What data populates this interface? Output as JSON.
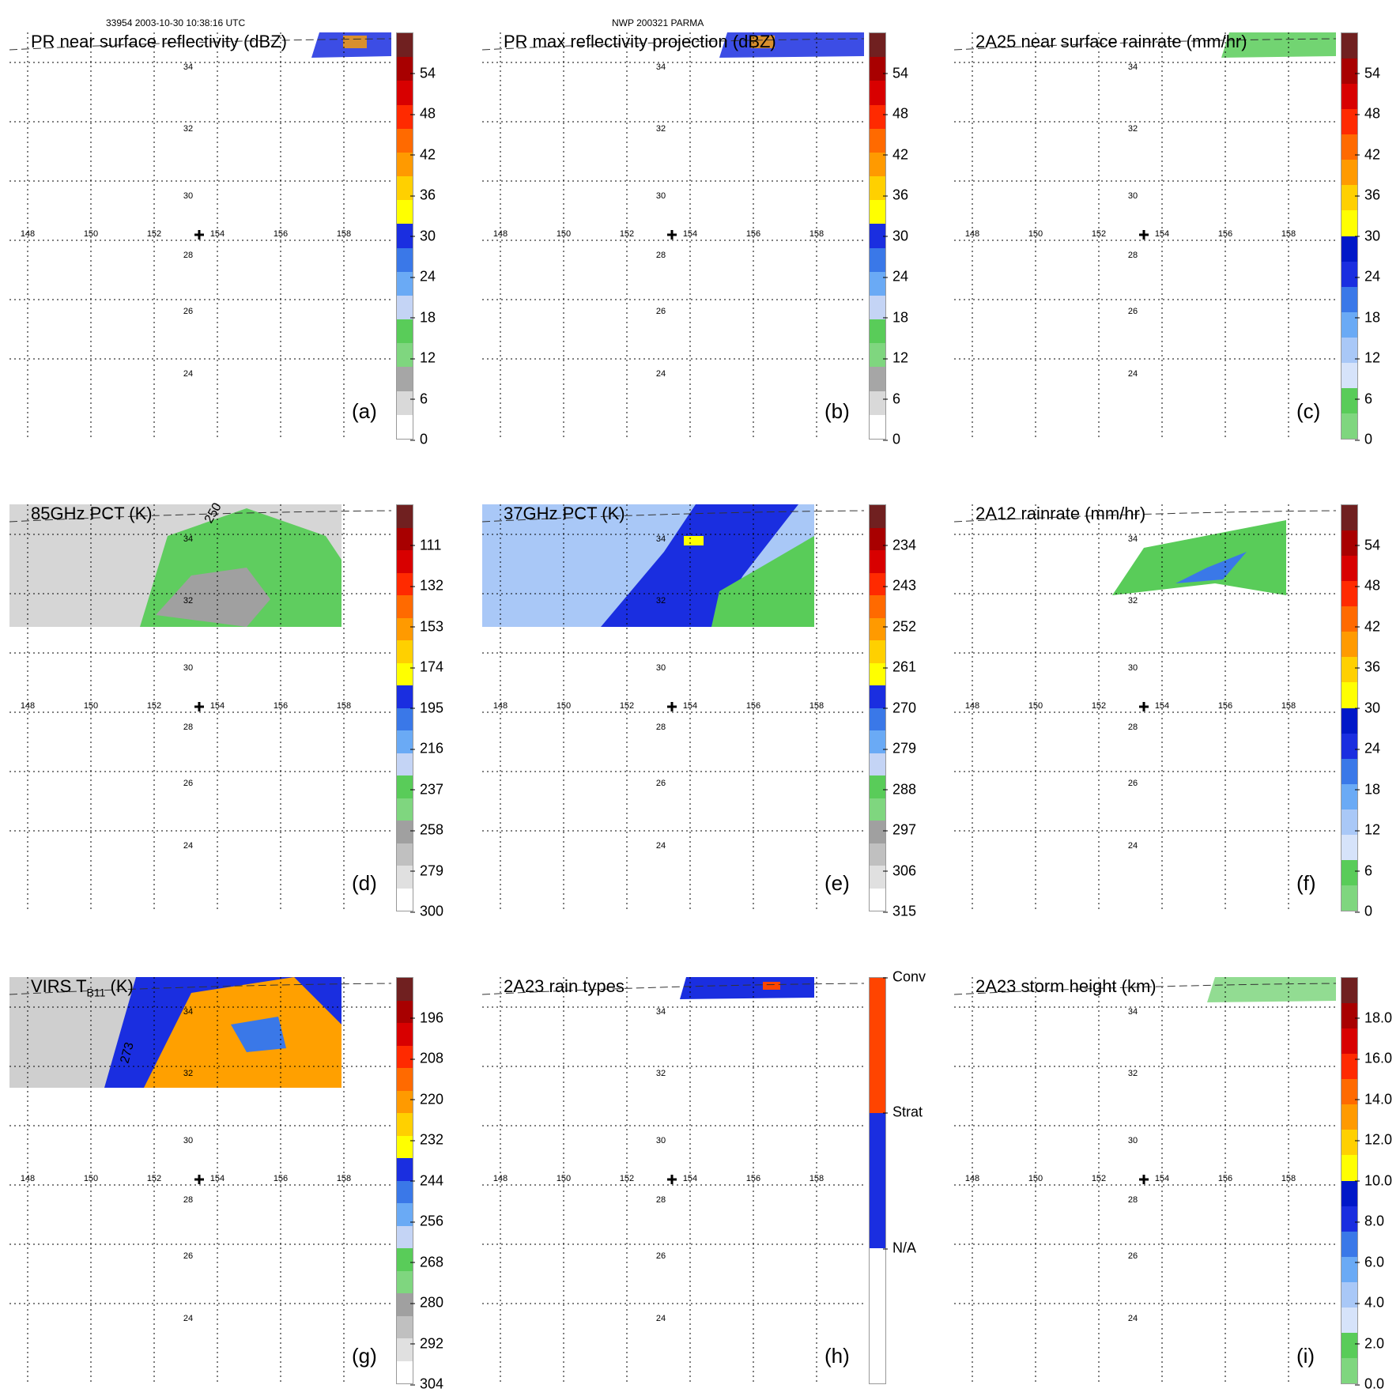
{
  "header": {
    "left": "33954 2003-10-30 10:38:16 UTC",
    "right": "NWP 200321 PARMA"
  },
  "grid": {
    "lon_labels": [
      "148",
      "150",
      "152",
      "154",
      "156",
      "158"
    ],
    "lat_labels": [
      "34",
      "32",
      "30",
      "28",
      "26",
      "24"
    ]
  },
  "panels": [
    {
      "id": "a",
      "title": "PR near surface reflectivity (dBZ)",
      "label": "(a)",
      "colorbar_ticks": [
        "54",
        "48",
        "42",
        "36",
        "30",
        "24",
        "18",
        "12",
        "6",
        "0"
      ]
    },
    {
      "id": "b",
      "title": "PR max reflectivity projection (dBZ)",
      "label": "(b)",
      "colorbar_ticks": [
        "54",
        "48",
        "42",
        "36",
        "30",
        "24",
        "18",
        "12",
        "6",
        "0"
      ]
    },
    {
      "id": "c",
      "title": "2A25 near surface rainrate (mm/hr)",
      "label": "(c)",
      "colorbar_ticks": [
        "54",
        "48",
        "42",
        "36",
        "30",
        "24",
        "18",
        "12",
        "6",
        "0"
      ]
    },
    {
      "id": "d",
      "title": "85GHz PCT (K)",
      "label": "(d)",
      "colorbar_ticks": [
        "111",
        "132",
        "153",
        "174",
        "195",
        "216",
        "237",
        "258",
        "279",
        "300"
      ],
      "contour_labels": [
        "250"
      ]
    },
    {
      "id": "e",
      "title": "37GHz PCT (K)",
      "label": "(e)",
      "colorbar_ticks": [
        "234",
        "243",
        "252",
        "261",
        "270",
        "279",
        "288",
        "297",
        "306",
        "315"
      ]
    },
    {
      "id": "f",
      "title": "2A12 rainrate (mm/hr)",
      "label": "(f)",
      "colorbar_ticks": [
        "54",
        "48",
        "42",
        "36",
        "30",
        "24",
        "18",
        "12",
        "6",
        "0"
      ]
    },
    {
      "id": "g",
      "title": "VIRS T",
      "title_sub": "B11",
      "title_tail": " (K)",
      "label": "(g)",
      "colorbar_ticks": [
        "196",
        "208",
        "220",
        "232",
        "244",
        "256",
        "268",
        "280",
        "292",
        "304"
      ],
      "contour_labels": [
        "273"
      ]
    },
    {
      "id": "h",
      "title": "2A23 rain types",
      "label": "(h)",
      "colorbar_ticks": [
        "Conv",
        "Strat",
        "N/A"
      ]
    },
    {
      "id": "i",
      "title": "2A23 storm height (km)",
      "label": "(i)",
      "colorbar_ticks": [
        "18.0",
        "16.0",
        "14.0",
        "12.0",
        "10.0",
        "8.0",
        "6.0",
        "4.0",
        "2.0",
        "0.0"
      ]
    }
  ],
  "colors": {
    "reflectivity_scale": [
      "#ffffff",
      "#d9d9d9",
      "#a6a6a6",
      "#7fd67f",
      "#59cc59",
      "#c4d4f5",
      "#6aaaf5",
      "#3a78e8",
      "#1a2ee0",
      "#ffff00",
      "#ffd000",
      "#ff9a00",
      "#ff6a00",
      "#ff2a00",
      "#d80000",
      "#a80000",
      "#702020"
    ],
    "rain_type_conv": "#ff4400",
    "rain_type_strat": "#1a2ee0",
    "rain_type_na": "#ffffff"
  }
}
